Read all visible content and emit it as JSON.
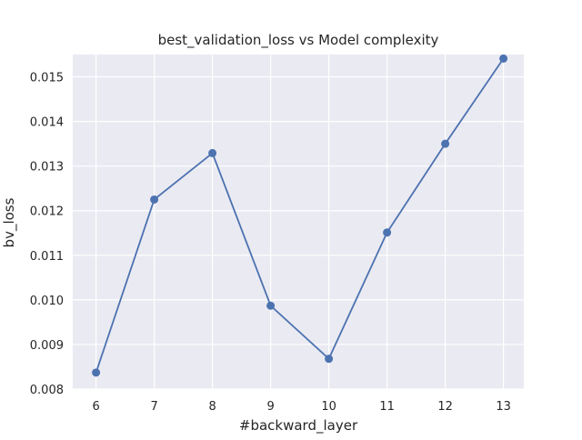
{
  "chart_data": {
    "type": "line",
    "title": "best_validation_loss vs Model complexity",
    "xlabel": "#backward_layer",
    "ylabel": "bv_loss",
    "x": [
      6,
      7,
      8,
      9,
      10,
      11,
      12,
      13
    ],
    "series": [
      {
        "values": [
          0.00837,
          0.01225,
          0.01329,
          0.00987,
          0.00868,
          0.01151,
          0.0135,
          0.01541
        ],
        "color": "#4c72b0",
        "marker": "circle"
      }
    ],
    "xticks": [
      "6",
      "7",
      "8",
      "9",
      "10",
      "11",
      "12",
      "13"
    ],
    "yticks": [
      "0.008",
      "0.009",
      "0.010",
      "0.011",
      "0.012",
      "0.013",
      "0.014",
      "0.015"
    ],
    "xlim": [
      5.6,
      13.35
    ],
    "ylim": [
      0.008,
      0.0155
    ],
    "grid": true,
    "background": "#eaeaf2",
    "grid_color": "#ffffff"
  }
}
